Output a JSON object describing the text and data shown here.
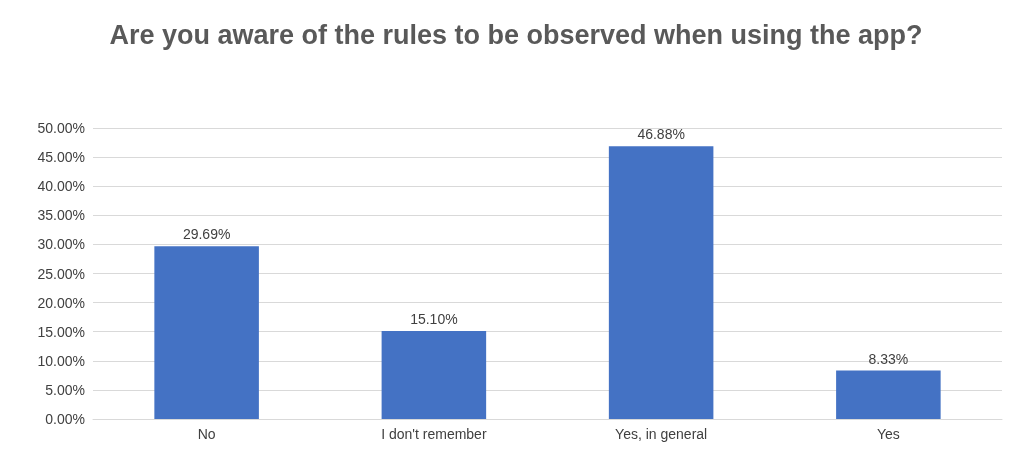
{
  "chart_data": {
    "type": "bar",
    "title": "Are you aware of the rules to be observed when using the app?",
    "categories": [
      "No",
      "I don't remember",
      "Yes, in general",
      "Yes"
    ],
    "values": [
      29.69,
      15.1,
      46.88,
      8.33
    ],
    "value_labels": [
      "29.69%",
      "15.10%",
      "46.88%",
      "8.33%"
    ],
    "color": "#4472c4",
    "ylim": [
      0,
      50
    ],
    "yticks": [
      {
        "value": 0,
        "label": "0.00%"
      },
      {
        "value": 5,
        "label": "5.00%"
      },
      {
        "value": 10,
        "label": "10.00%"
      },
      {
        "value": 15,
        "label": "15.00%"
      },
      {
        "value": 20,
        "label": "20.00%"
      },
      {
        "value": 25,
        "label": "25.00%"
      },
      {
        "value": 30,
        "label": "30.00%"
      },
      {
        "value": 35,
        "label": "35.00%"
      },
      {
        "value": 40,
        "label": "40.00%"
      },
      {
        "value": 45,
        "label": "45.00%"
      },
      {
        "value": 50,
        "label": "50.00%"
      }
    ],
    "grid": true
  }
}
